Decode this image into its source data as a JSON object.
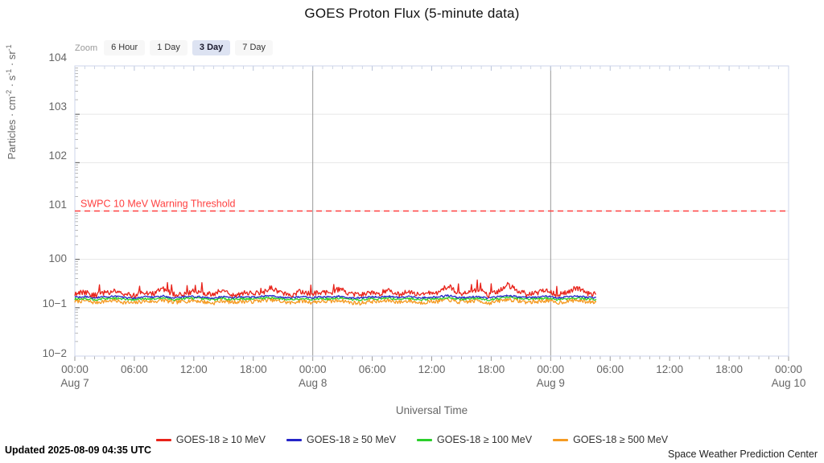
{
  "title": "GOES Proton Flux (5-minute data)",
  "toolbar": {
    "zoom_label": "Zoom",
    "buttons": [
      {
        "label": "6 Hour",
        "selected": false
      },
      {
        "label": "1 Day",
        "selected": false
      },
      {
        "label": "3 Day",
        "selected": true
      },
      {
        "label": "7 Day",
        "selected": false
      }
    ],
    "selected_bg": "#dde3f2"
  },
  "chart_data": {
    "type": "line",
    "title": "GOES Proton Flux (5-minute data)",
    "xlabel": "Universal Time",
    "ylabel_parts": [
      "Particles · cm",
      "-2",
      " · s",
      "-1",
      " · sr",
      "-1"
    ],
    "grid": true,
    "legend_position": "bottom",
    "x_axis": {
      "start": "Aug 7 00:00",
      "end": "Aug 10 00:00",
      "span_hours": 72,
      "tick_labels": [
        "00:00",
        "06:00",
        "12:00",
        "18:00",
        "00:00",
        "06:00",
        "12:00",
        "18:00",
        "00:00",
        "06:00",
        "12:00",
        "18:00",
        "00:00"
      ],
      "date_labels": [
        "Aug 7",
        "Aug 8",
        "Aug 9",
        "Aug 10"
      ],
      "day_line_hours": [
        24,
        48
      ]
    },
    "y_axis": {
      "scale": "log",
      "ylim": [
        0.01,
        10000
      ],
      "tick_labels": [
        "104",
        "103",
        "102",
        "101",
        "100",
        "10−1",
        "10−2"
      ],
      "tick_values": [
        10000,
        1000,
        100,
        10,
        1,
        0.1,
        0.01
      ]
    },
    "threshold": {
      "label": "SWPC 10 MeV Warning Threshold",
      "value": 10,
      "color": "#ff4040"
    },
    "series": [
      {
        "name": "GOES-18 ≥ 10 MeV",
        "color": "#e8231a",
        "noise_log10": 0.055,
        "spike_prob": 0.02,
        "spike_gain": 1.45,
        "end_hour": 52.58,
        "values": [
          0.19,
          0.21,
          0.18,
          0.2,
          0.22,
          0.19,
          0.18,
          0.21,
          0.2,
          0.24,
          0.19,
          0.18,
          0.22,
          0.2,
          0.19,
          0.23,
          0.18,
          0.2,
          0.21,
          0.19,
          0.26,
          0.2,
          0.18,
          0.22,
          0.19,
          0.21,
          0.2,
          0.25,
          0.19,
          0.18,
          0.21,
          0.2,
          0.23,
          0.19,
          0.22,
          0.18,
          0.2,
          0.21,
          0.28,
          0.19,
          0.2,
          0.24,
          0.18,
          0.21,
          0.3,
          0.22,
          0.19,
          0.2,
          0.23,
          0.18,
          0.21,
          0.26,
          0.2,
          0.19
        ]
      },
      {
        "name": "GOES-18 ≥ 50 MeV",
        "color": "#2525c8",
        "noise_log10": 0.018,
        "spike_prob": 0,
        "spike_gain": 1,
        "end_hour": 52.58,
        "values": [
          0.165,
          0.17,
          0.16,
          0.168,
          0.172,
          0.162,
          0.158,
          0.17,
          0.165,
          0.175,
          0.16,
          0.168,
          0.172,
          0.165,
          0.158,
          0.17,
          0.162,
          0.168,
          0.165,
          0.172,
          0.178,
          0.165,
          0.16,
          0.17,
          0.162,
          0.168,
          0.165,
          0.174,
          0.16,
          0.158,
          0.168,
          0.165,
          0.172,
          0.162,
          0.17,
          0.16,
          0.165,
          0.168,
          0.18,
          0.162,
          0.165,
          0.172,
          0.158,
          0.168,
          0.182,
          0.17,
          0.162,
          0.165,
          0.172,
          0.16,
          0.168,
          0.175,
          0.165,
          0.162
        ]
      },
      {
        "name": "GOES-18 ≥ 100 MeV",
        "color": "#2ccf2c",
        "noise_log10": 0.022,
        "spike_prob": 0,
        "spike_gain": 1,
        "end_hour": 52.58,
        "values": [
          0.152,
          0.156,
          0.148,
          0.154,
          0.158,
          0.15,
          0.146,
          0.156,
          0.152,
          0.16,
          0.148,
          0.154,
          0.158,
          0.152,
          0.146,
          0.156,
          0.15,
          0.154,
          0.152,
          0.158,
          0.162,
          0.152,
          0.148,
          0.156,
          0.15,
          0.154,
          0.152,
          0.16,
          0.148,
          0.146,
          0.154,
          0.152,
          0.158,
          0.15,
          0.156,
          0.148,
          0.152,
          0.154,
          0.164,
          0.15,
          0.152,
          0.158,
          0.146,
          0.154,
          0.166,
          0.156,
          0.15,
          0.152,
          0.158,
          0.148,
          0.154,
          0.16,
          0.152,
          0.15
        ]
      },
      {
        "name": "GOES-18 ≥ 500 MeV",
        "color": "#f59b22",
        "noise_log10": 0.042,
        "spike_prob": 0,
        "spike_gain": 1,
        "end_hour": 52.58,
        "values": [
          0.135,
          0.14,
          0.128,
          0.136,
          0.142,
          0.13,
          0.124,
          0.138,
          0.134,
          0.144,
          0.128,
          0.136,
          0.142,
          0.134,
          0.124,
          0.14,
          0.13,
          0.136,
          0.134,
          0.142,
          0.146,
          0.134,
          0.126,
          0.14,
          0.13,
          0.136,
          0.134,
          0.144,
          0.128,
          0.124,
          0.136,
          0.134,
          0.142,
          0.13,
          0.14,
          0.126,
          0.134,
          0.136,
          0.148,
          0.13,
          0.134,
          0.142,
          0.124,
          0.136,
          0.15,
          0.14,
          0.13,
          0.134,
          0.142,
          0.126,
          0.136,
          0.144,
          0.134,
          0.13
        ]
      }
    ],
    "colors": {
      "grid": "#e6e6e6",
      "day_line": "#999999",
      "border": "#ccd6eb",
      "tick_minor": "#999999",
      "tick_top": "#b9c3d9"
    }
  },
  "footer": {
    "updated": "Updated 2025-08-09 04:35 UTC",
    "credit": "Space Weather Prediction Center"
  }
}
